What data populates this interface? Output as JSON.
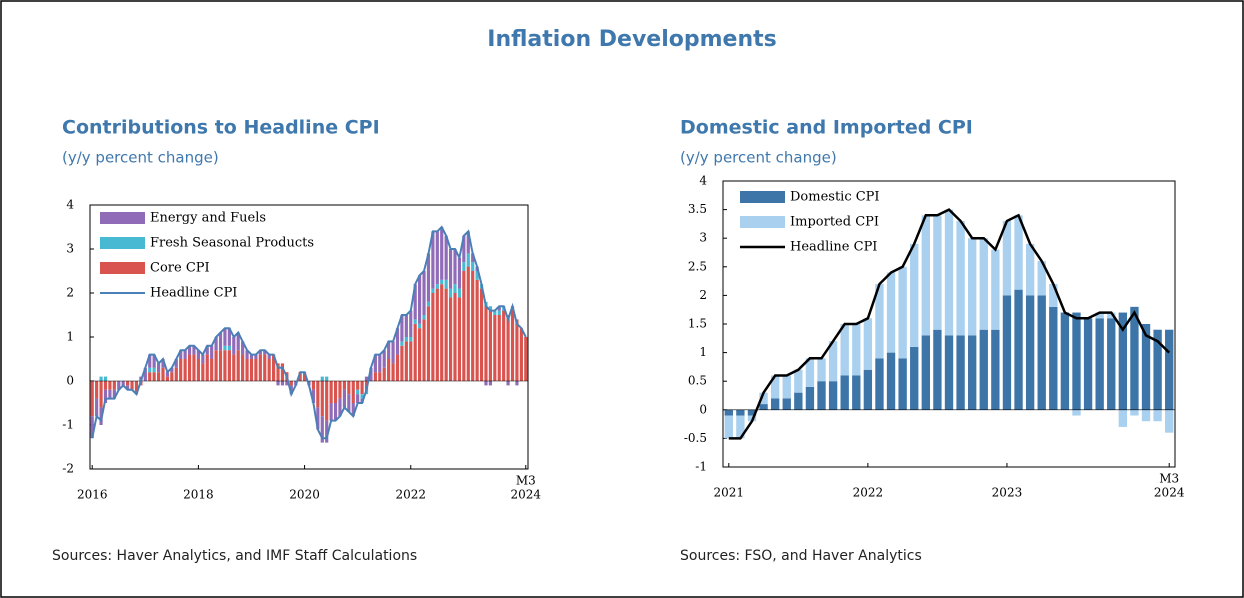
{
  "title": "Inflation Developments",
  "chart_data": [
    {
      "type": "bar",
      "title": "Contributions to Headline CPI",
      "subtitle": "(y/y percent change)",
      "source": "Sources: Haver Analytics, and IMF Staff Calculations",
      "annotation": "M3",
      "categories": [
        "2016",
        null,
        null,
        null,
        null,
        null,
        null,
        null,
        null,
        null,
        null,
        null,
        null,
        null,
        null,
        null,
        null,
        null,
        null,
        null,
        null,
        null,
        null,
        null,
        "2018",
        null,
        null,
        null,
        null,
        null,
        null,
        null,
        null,
        null,
        null,
        null,
        null,
        null,
        null,
        null,
        null,
        null,
        null,
        null,
        null,
        null,
        null,
        null,
        "2020",
        null,
        null,
        null,
        null,
        null,
        null,
        null,
        null,
        null,
        null,
        null,
        null,
        null,
        null,
        null,
        null,
        null,
        null,
        null,
        null,
        null,
        null,
        null,
        "2022",
        null,
        null,
        null,
        null,
        null,
        null,
        null,
        null,
        null,
        null,
        null,
        null,
        null,
        null,
        null,
        null,
        null,
        null,
        null,
        null,
        null,
        null,
        null,
        null,
        null,
        "2024"
      ],
      "ylim": [
        -2,
        4
      ],
      "yticks": [
        -2,
        -1,
        0,
        1,
        2,
        3,
        4
      ],
      "legend": "upper left",
      "series": [
        {
          "name": "Energy and Fuels",
          "type": "bar",
          "color": "#8f6bb8",
          "values": [
            -0.5,
            -0.4,
            -0.4,
            -0.3,
            -0.2,
            -0.2,
            -0.2,
            -0.1,
            -0.1,
            0.0,
            0.0,
            0.1,
            0.3,
            0.3,
            0.3,
            0.2,
            0.2,
            0.1,
            0.1,
            0.2,
            0.2,
            0.2,
            0.2,
            0.2,
            0.2,
            0.2,
            0.2,
            0.3,
            0.3,
            0.4,
            0.4,
            0.4,
            0.4,
            0.4,
            0.3,
            0.2,
            0.1,
            0.1,
            0.1,
            0.1,
            0.1,
            0.0,
            -0.1,
            -0.1,
            -0.1,
            -0.2,
            -0.1,
            0.0,
            0.0,
            -0.1,
            -0.3,
            -0.5,
            -0.6,
            -0.5,
            -0.4,
            -0.4,
            -0.4,
            -0.4,
            -0.4,
            -0.3,
            -0.2,
            -0.1,
            0.1,
            0.3,
            0.4,
            0.4,
            0.4,
            0.4,
            0.5,
            0.6,
            0.6,
            0.5,
            0.6,
            0.8,
            1.1,
            1.0,
            1.1,
            1.3,
            1.2,
            1.2,
            1.0,
            0.9,
            0.8,
            0.7,
            0.6,
            0.5,
            0.2,
            0.1,
            0.0,
            -0.1,
            -0.1,
            0.0,
            0.1,
            0.0,
            -0.1,
            0.0,
            -0.1,
            0.0,
            0.0
          ]
        },
        {
          "name": "Fresh Seasonal Products",
          "type": "bar",
          "color": "#48b9d2",
          "values": [
            0.0,
            0.0,
            0.1,
            0.1,
            0.0,
            0.0,
            0.0,
            0.0,
            0.0,
            0.0,
            0.0,
            0.0,
            0.0,
            0.1,
            0.1,
            0.0,
            0.0,
            0.0,
            0.0,
            0.0,
            0.0,
            0.0,
            0.0,
            0.0,
            0.0,
            0.0,
            0.0,
            0.0,
            0.0,
            0.0,
            0.1,
            0.1,
            0.0,
            0.0,
            0.0,
            0.0,
            0.0,
            0.0,
            0.0,
            0.0,
            0.0,
            0.0,
            0.0,
            0.0,
            0.0,
            0.0,
            0.0,
            0.0,
            0.0,
            0.0,
            0.0,
            0.0,
            0.1,
            0.1,
            0.0,
            0.0,
            0.0,
            0.0,
            0.0,
            0.0,
            -0.1,
            -0.1,
            -0.1,
            0.0,
            0.0,
            0.0,
            0.0,
            0.0,
            0.0,
            0.0,
            0.1,
            0.1,
            0.1,
            0.1,
            0.1,
            0.1,
            0.1,
            0.1,
            0.1,
            0.1,
            0.2,
            0.2,
            0.2,
            0.2,
            0.2,
            0.3,
            0.2,
            0.2,
            0.1,
            0.1,
            0.1,
            0.1,
            0.1,
            0.1,
            0.0,
            0.0,
            0.0,
            0.0,
            0.0
          ]
        },
        {
          "name": "Core CPI",
          "type": "bar",
          "color": "#d9534f",
          "values": [
            -0.8,
            -0.4,
            -0.6,
            -0.2,
            -0.2,
            -0.2,
            0.0,
            0.0,
            -0.1,
            -0.2,
            -0.3,
            -0.1,
            0.0,
            0.2,
            0.2,
            0.2,
            0.3,
            0.1,
            0.2,
            0.3,
            0.5,
            0.5,
            0.6,
            0.6,
            0.5,
            0.4,
            0.6,
            0.5,
            0.7,
            0.7,
            0.7,
            0.7,
            0.6,
            0.7,
            0.6,
            0.5,
            0.5,
            0.5,
            0.6,
            0.6,
            0.5,
            0.6,
            0.4,
            0.4,
            0.2,
            -0.1,
            0.0,
            0.2,
            0.2,
            0.0,
            -0.2,
            -0.6,
            -0.8,
            -0.9,
            -0.5,
            -0.5,
            -0.4,
            -0.2,
            -0.3,
            -0.5,
            -0.2,
            -0.3,
            -0.2,
            0.0,
            0.2,
            0.2,
            0.3,
            0.5,
            0.4,
            0.6,
            0.8,
            0.9,
            0.9,
            1.3,
            1.2,
            1.4,
            1.7,
            2.0,
            2.1,
            2.2,
            2.1,
            1.9,
            2.0,
            1.9,
            2.5,
            2.6,
            2.5,
            2.3,
            2.1,
            1.7,
            1.6,
            1.5,
            1.5,
            1.6,
            1.5,
            1.7,
            1.4,
            1.2,
            1.0
          ]
        },
        {
          "name": "Headline CPI",
          "type": "line",
          "color": "#4a80b6",
          "values": [
            -1.3,
            -0.8,
            -0.9,
            -0.4,
            -0.4,
            -0.4,
            -0.2,
            -0.1,
            -0.2,
            -0.2,
            -0.3,
            0.0,
            0.3,
            0.6,
            0.6,
            0.4,
            0.5,
            0.2,
            0.3,
            0.5,
            0.7,
            0.7,
            0.8,
            0.8,
            0.7,
            0.6,
            0.8,
            0.8,
            1.0,
            1.1,
            1.2,
            1.2,
            1.0,
            1.1,
            0.9,
            0.7,
            0.6,
            0.6,
            0.7,
            0.7,
            0.6,
            0.6,
            0.3,
            0.3,
            0.1,
            -0.3,
            -0.1,
            0.2,
            0.2,
            -0.1,
            -0.5,
            -1.1,
            -1.3,
            -1.3,
            -0.9,
            -0.9,
            -0.8,
            -0.6,
            -0.7,
            -0.8,
            -0.5,
            -0.5,
            -0.2,
            0.3,
            0.6,
            0.6,
            0.7,
            0.9,
            0.9,
            1.2,
            1.5,
            1.5,
            1.6,
            2.2,
            2.4,
            2.5,
            2.9,
            3.4,
            3.4,
            3.5,
            3.3,
            3.0,
            3.0,
            2.8,
            3.3,
            3.4,
            2.9,
            2.6,
            2.2,
            1.7,
            1.6,
            1.6,
            1.7,
            1.7,
            1.4,
            1.7,
            1.3,
            1.2,
            1.0
          ]
        }
      ]
    },
    {
      "type": "bar",
      "title": "Domestic and Imported CPI",
      "subtitle": "(y/y percent change)",
      "source": "Sources: FSO, and Haver Analytics",
      "annotation": "M3",
      "categories": [
        "2021",
        null,
        null,
        null,
        null,
        null,
        null,
        null,
        null,
        null,
        null,
        null,
        "2022",
        null,
        null,
        null,
        null,
        null,
        null,
        null,
        null,
        null,
        null,
        null,
        "2023",
        null,
        null,
        null,
        null,
        null,
        null,
        null,
        null,
        null,
        null,
        null,
        null,
        null,
        "2024"
      ],
      "ylim": [
        -1,
        4
      ],
      "yticks": [
        -1,
        -0.5,
        0,
        0.5,
        1,
        1.5,
        2,
        2.5,
        3,
        3.5,
        4
      ],
      "legend": "upper left",
      "series": [
        {
          "name": "Domestic CPI",
          "type": "bar",
          "color": "#3d75a8",
          "values": [
            -0.1,
            -0.1,
            -0.1,
            0.1,
            0.2,
            0.2,
            0.3,
            0.4,
            0.5,
            0.5,
            0.6,
            0.6,
            0.7,
            0.9,
            1.0,
            0.9,
            1.1,
            1.3,
            1.4,
            1.3,
            1.3,
            1.3,
            1.4,
            1.4,
            2.0,
            2.1,
            2.0,
            2.0,
            1.8,
            1.7,
            1.7,
            1.6,
            1.6,
            1.6,
            1.7,
            1.8,
            1.5,
            1.4,
            1.4
          ]
        },
        {
          "name": "Imported CPI",
          "type": "bar",
          "color": "#a9d0ef",
          "values": [
            -0.4,
            -0.4,
            -0.1,
            0.2,
            0.4,
            0.4,
            0.4,
            0.5,
            0.4,
            0.7,
            0.9,
            0.9,
            0.9,
            1.3,
            1.4,
            1.6,
            1.8,
            2.1,
            2.0,
            2.2,
            2.0,
            1.7,
            1.6,
            1.4,
            1.3,
            1.3,
            0.9,
            0.6,
            0.4,
            0.0,
            -0.1,
            0.0,
            0.1,
            0.1,
            -0.3,
            -0.1,
            -0.2,
            -0.2,
            -0.4
          ]
        },
        {
          "name": "Headline CPI",
          "type": "line",
          "color": "#000000",
          "values": [
            -0.5,
            -0.5,
            -0.2,
            0.3,
            0.6,
            0.6,
            0.7,
            0.9,
            0.9,
            1.2,
            1.5,
            1.5,
            1.6,
            2.2,
            2.4,
            2.5,
            2.9,
            3.4,
            3.4,
            3.5,
            3.3,
            3.0,
            3.0,
            2.8,
            3.3,
            3.4,
            2.9,
            2.6,
            2.2,
            1.7,
            1.6,
            1.6,
            1.7,
            1.7,
            1.4,
            1.7,
            1.3,
            1.2,
            1.0
          ]
        }
      ]
    }
  ]
}
